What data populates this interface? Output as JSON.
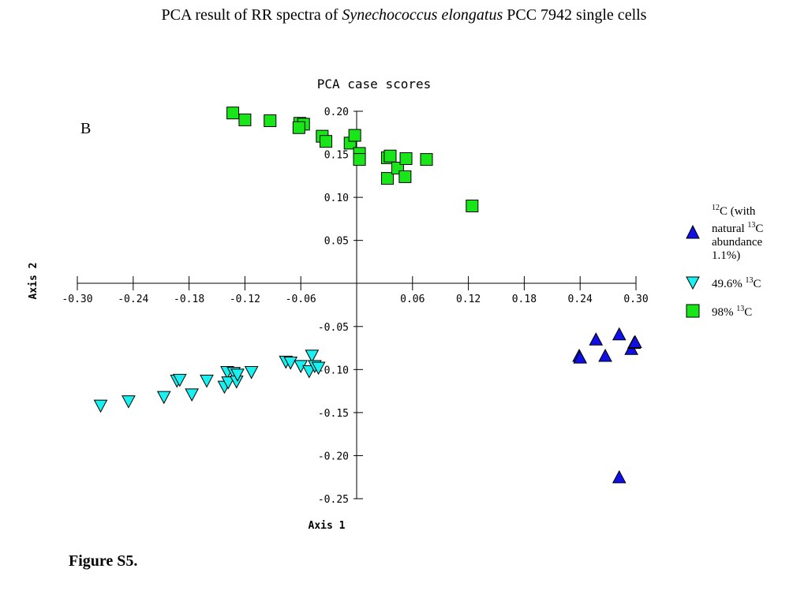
{
  "slide": {
    "title_pre": "PCA result of RR spectra of ",
    "title_species": "Synechococcus elongatus",
    "title_post": " PCC 7942 single cells",
    "panel_label": "B",
    "caption": "Figure S5."
  },
  "legend": {
    "items": [
      {
        "iso": "12",
        "text_a": "C (with natural ",
        "iso2": "13",
        "text_b": "C abundance 1.1%)",
        "marker": "triangle-up",
        "color": "#1010e6"
      },
      {
        "text_a": "49.6% ",
        "iso2": "13",
        "text_b": "C",
        "marker": "triangle-down",
        "color": "#19f0f0"
      },
      {
        "text_a": "98% ",
        "iso2": "13",
        "text_b": "C",
        "marker": "square",
        "color": "#19e619"
      }
    ]
  },
  "chart_data": {
    "type": "scatter",
    "title": "PCA case scores",
    "xlabel": "Axis 1",
    "ylabel": "Axis 2",
    "xlim": [
      -0.3,
      0.3
    ],
    "ylim": [
      -0.25,
      0.2
    ],
    "xticks": [
      "-0.30",
      "-0.24",
      "-0.18",
      "-0.12",
      "-0.06",
      "0.06",
      "0.12",
      "0.18",
      "0.24",
      "0.30"
    ],
    "xtick_values": [
      -0.3,
      -0.24,
      -0.18,
      -0.12,
      -0.06,
      0.06,
      0.12,
      0.18,
      0.24,
      0.3
    ],
    "yticks": [
      "0.20",
      "0.15",
      "0.10",
      "0.05",
      "-0.05",
      "-0.10",
      "-0.15",
      "-0.20",
      "-0.25"
    ],
    "ytick_values": [
      0.2,
      0.15,
      0.1,
      0.05,
      -0.05,
      -0.1,
      -0.15,
      -0.2,
      -0.25
    ],
    "grid": false,
    "legend_position": "right",
    "series": [
      {
        "name": "12C (with natural 13C abundance 1.1%)",
        "marker": "triangle-up",
        "color": "#1010e6",
        "x": [
          0.239,
          0.24,
          0.257,
          0.267,
          0.282,
          0.295,
          0.298,
          0.299,
          0.282
        ],
        "y": [
          -0.085,
          -0.087,
          -0.066,
          -0.085,
          -0.06,
          -0.077,
          -0.07,
          -0.069,
          -0.226
        ]
      },
      {
        "name": "49.6% 13C",
        "marker": "triangle-down",
        "color": "#19f0f0",
        "x": [
          -0.275,
          -0.245,
          -0.207,
          -0.193,
          -0.19,
          -0.177,
          -0.161,
          -0.142,
          -0.139,
          -0.138,
          -0.132,
          -0.129,
          -0.128,
          -0.113,
          -0.076,
          -0.071,
          -0.06,
          -0.051,
          -0.048,
          -0.045,
          -0.041
        ],
        "y": [
          -0.141,
          -0.136,
          -0.131,
          -0.112,
          -0.111,
          -0.128,
          -0.112,
          -0.119,
          -0.102,
          -0.114,
          -0.103,
          -0.113,
          -0.105,
          -0.102,
          -0.09,
          -0.091,
          -0.095,
          -0.101,
          -0.083,
          -0.095,
          -0.097
        ],
        "y_printed_note": ""
      },
      {
        "name": "98% 13C",
        "marker": "square",
        "color": "#19e619",
        "x": [
          -0.133,
          -0.12,
          -0.093,
          -0.061,
          -0.057,
          -0.062,
          -0.037,
          -0.033,
          -0.007,
          -0.002,
          0.003,
          0.003,
          0.033,
          0.036,
          0.033,
          0.044,
          0.052,
          0.053,
          0.075,
          0.124
        ],
        "y": [
          0.198,
          0.19,
          0.189,
          0.186,
          0.185,
          0.181,
          0.171,
          0.165,
          0.163,
          0.172,
          0.151,
          0.144,
          0.146,
          0.148,
          0.122,
          0.134,
          0.124,
          0.145,
          0.144,
          0.09
        ]
      }
    ]
  }
}
